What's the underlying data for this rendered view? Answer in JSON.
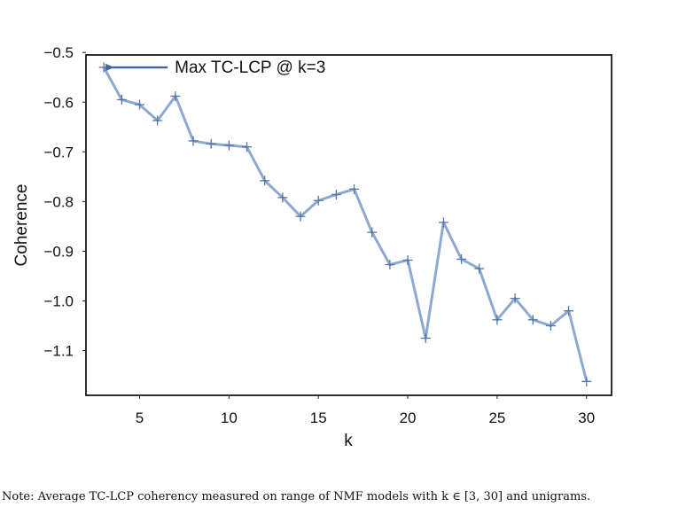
{
  "chart_data": {
    "type": "line",
    "title": "",
    "xlabel": "k",
    "ylabel": "Coherence",
    "xlim": [
      2,
      31.4
    ],
    "ylim": [
      -1.19,
      -0.505
    ],
    "xticks": [
      5,
      10,
      15,
      20,
      25,
      30
    ],
    "yticks": [
      -0.5,
      -0.6,
      -0.7,
      -0.8,
      -0.9,
      -1.0,
      -1.1
    ],
    "xtick_labels": [
      "5",
      "10",
      "15",
      "20",
      "25",
      "30"
    ],
    "ytick_labels": [
      "−0.5",
      "−0.6",
      "−0.7",
      "−0.8",
      "−0.9",
      "−1.0",
      "−1.1"
    ],
    "grid": false,
    "marker": "+",
    "line_color": "#8ea9d0",
    "marker_color": "#5575a8",
    "series": [
      {
        "x": [
          3,
          4,
          5,
          6,
          7,
          8,
          9,
          10,
          11,
          12,
          13,
          14,
          15,
          16,
          17,
          18,
          19,
          20,
          21,
          22,
          23,
          24,
          25,
          26,
          27,
          28,
          29,
          30
        ],
        "values": [
          -0.53,
          -0.595,
          -0.605,
          -0.637,
          -0.588,
          -0.678,
          -0.684,
          -0.687,
          -0.69,
          -0.758,
          -0.792,
          -0.83,
          -0.798,
          -0.786,
          -0.775,
          -0.862,
          -0.927,
          -0.918,
          -1.075,
          -0.842,
          -0.916,
          -0.935,
          -1.038,
          -0.995,
          -1.038,
          -1.05,
          -1.02,
          -1.162
        ]
      }
    ],
    "annotation": {
      "text": "Max TC-LCP @ k=3",
      "x": 3,
      "y": -0.53,
      "arrow_color": "#4466a0"
    }
  },
  "note": "Note: Average TC-LCP coherency measured on range of NMF models with k ∈ [3, 30] and unigrams."
}
